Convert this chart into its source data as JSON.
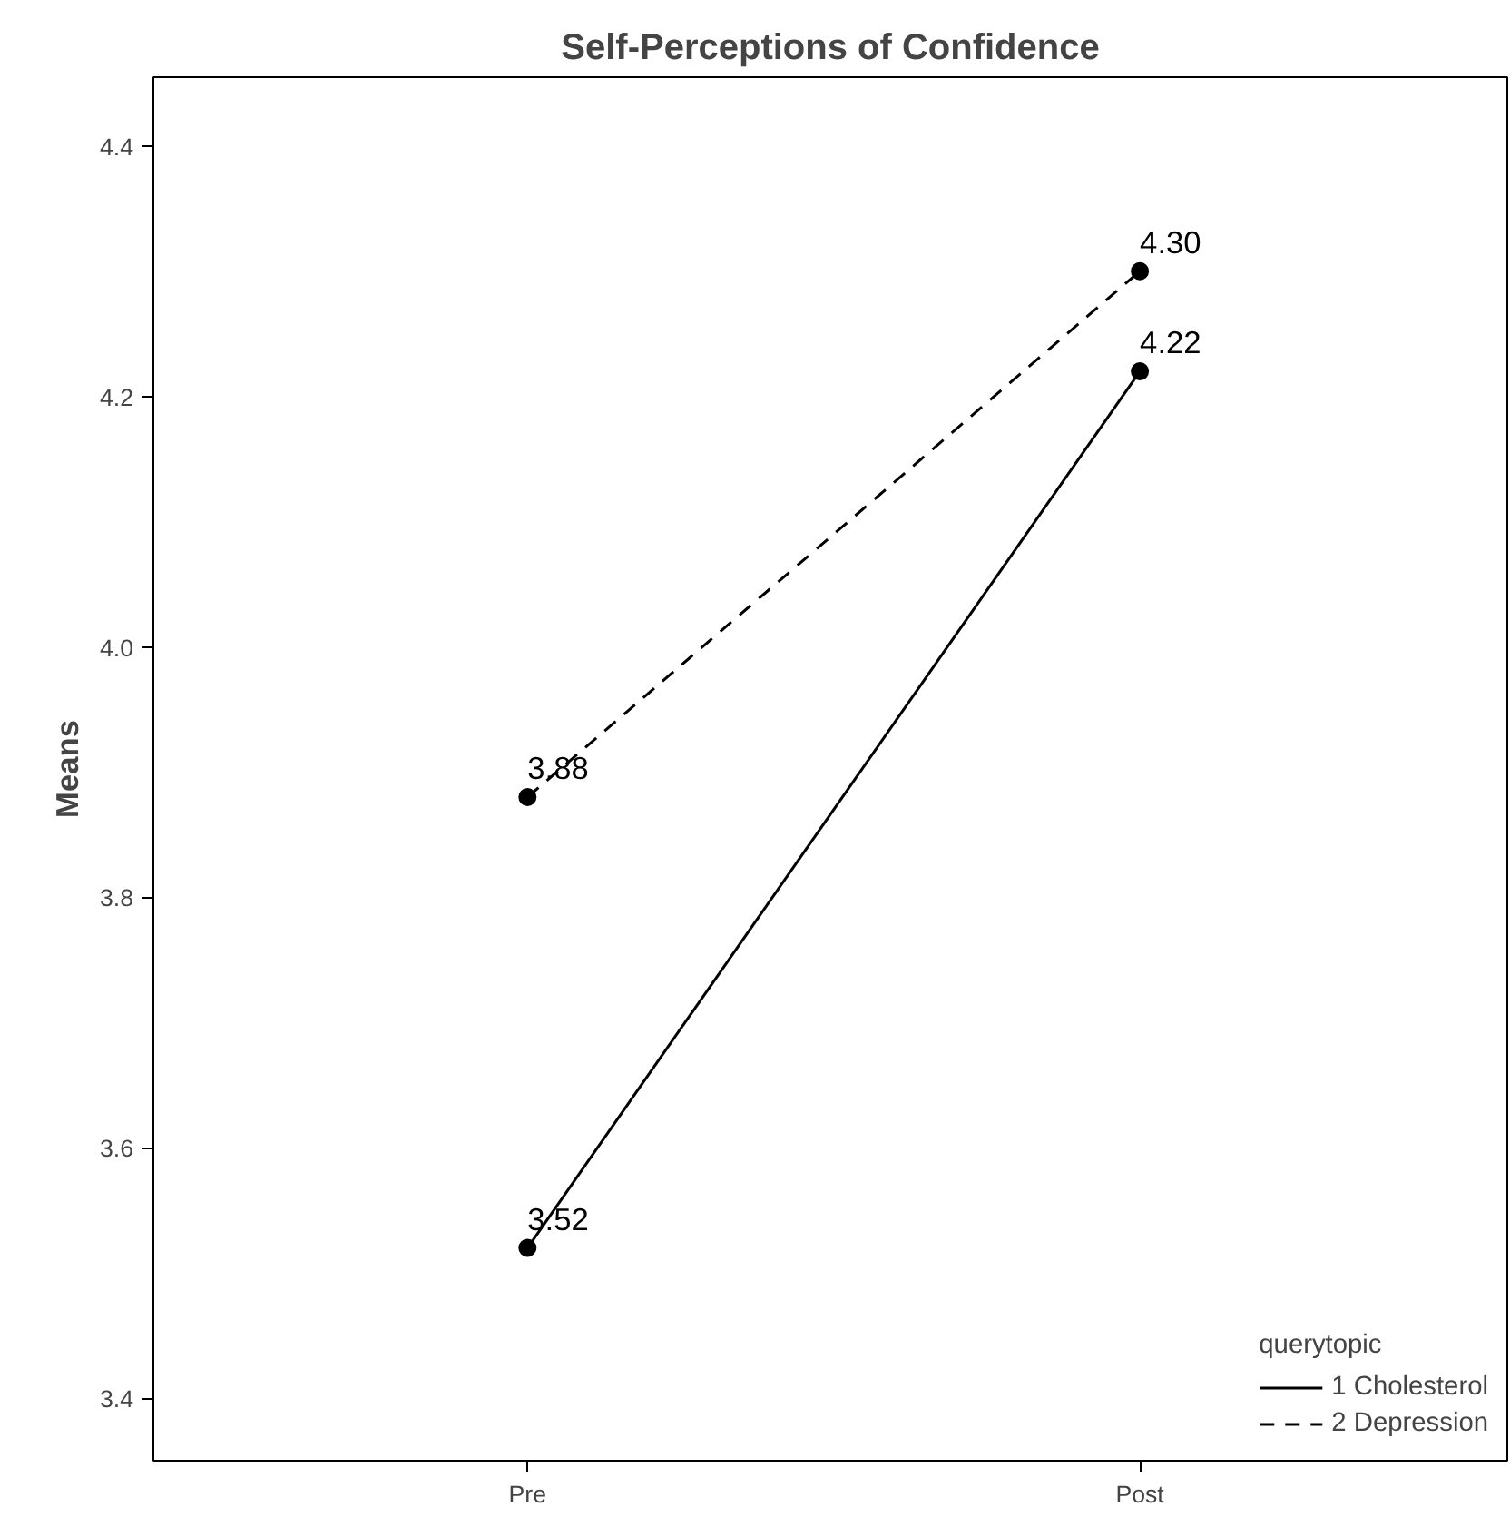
{
  "chart_data": {
    "type": "line",
    "title": "Self-Perceptions of Confidence",
    "ylabel": "Means",
    "legend_title": "querytopic",
    "categories": [
      "Pre",
      "Post"
    ],
    "series": [
      {
        "name": "1 Cholesterol",
        "color": "#000000",
        "values": [
          3.52,
          4.22
        ],
        "line_style": "solid",
        "value_labels": [
          "3.52",
          "4.22"
        ]
      },
      {
        "name": "2 Depression",
        "color": "#000000",
        "values": [
          3.88,
          4.3
        ],
        "line_style": "dashed",
        "value_labels": [
          "3.88",
          "4.30"
        ]
      }
    ],
    "ylim": [
      3.35,
      4.455
    ],
    "yticks": [
      {
        "value": 3.4,
        "label": "3.4"
      },
      {
        "value": 3.6,
        "label": "3.6"
      },
      {
        "value": 3.8,
        "label": "3.8"
      },
      {
        "value": 4.0,
        "label": "4.0"
      },
      {
        "value": 4.2,
        "label": "4.2"
      },
      {
        "value": 4.4,
        "label": "4.4"
      }
    ],
    "marker": "circle",
    "grid": false,
    "legend": "bottom right"
  }
}
